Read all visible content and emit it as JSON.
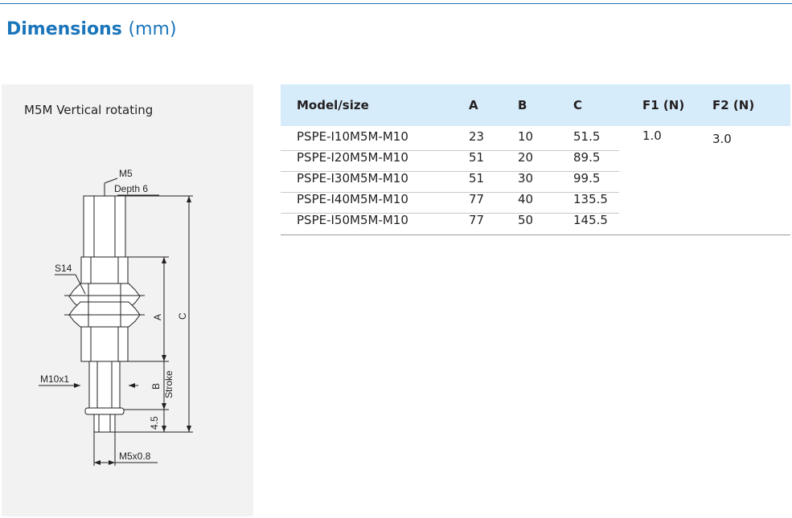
{
  "header": {
    "title": "Dimensions",
    "unit": "(mm)"
  },
  "drawing": {
    "caption": "M5M Vertical rotating",
    "labels": {
      "m5": "M5",
      "depth": "Depth 6",
      "s14": "S14",
      "a": "A",
      "c": "C",
      "m10": "M10x1",
      "b": "B",
      "stroke": "Stroke",
      "d45": "4.5",
      "m5x08": "M5x0.8"
    }
  },
  "table": {
    "headers": [
      "Model/size",
      "A",
      "B",
      "C",
      "F1 (N)",
      "F2 (N)"
    ],
    "rows": [
      [
        "PSPE-I10M5M-M10",
        "23",
        "10",
        "51.5"
      ],
      [
        "PSPE-I20M5M-M10",
        "51",
        "20",
        "89.5"
      ],
      [
        "PSPE-I30M5M-M10",
        "51",
        "30",
        "99.5"
      ],
      [
        "PSPE-I40M5M-M10",
        "77",
        "40",
        "135.5"
      ],
      [
        "PSPE-I50M5M-M10",
        "77",
        "50",
        "145.5"
      ]
    ],
    "f1": "1.0",
    "f2": "3.0"
  },
  "colors": {
    "accent": "#1b75bb",
    "header_bg": "#d7ecfa",
    "panel_bg": "#f2f2f2"
  }
}
